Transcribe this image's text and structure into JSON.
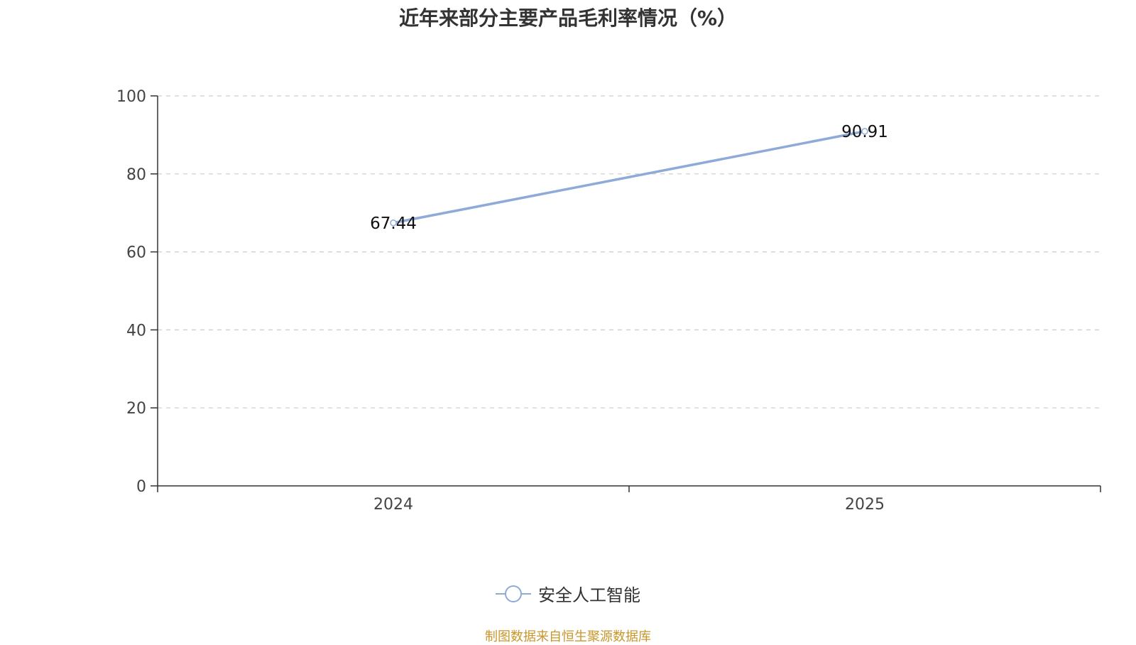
{
  "chart_data": {
    "type": "line",
    "title": "近年来部分主要产品毛利率情况（%）",
    "categories": [
      "2024",
      "2025"
    ],
    "series": [
      {
        "name": "安全人工智能",
        "values": [
          67.44,
          90.91
        ],
        "labels": [
          "67.44",
          "90.91"
        ],
        "color": "#8eaad9"
      }
    ],
    "ylim": [
      0,
      100
    ],
    "yticks": [
      "0",
      "20",
      "40",
      "60",
      "80",
      "100"
    ],
    "grid": true,
    "legend": "bottom-center"
  },
  "footer": {
    "source": "制图数据来自恒生聚源数据库",
    "color": "#c8962a"
  }
}
